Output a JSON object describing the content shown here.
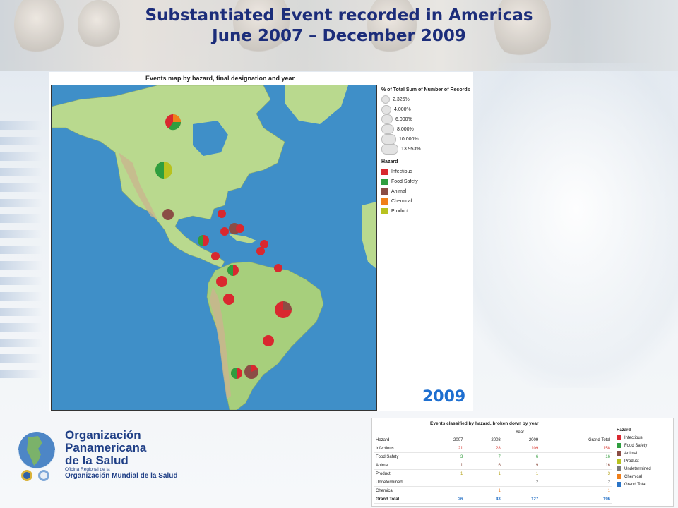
{
  "slide": {
    "title_line1": "Substantiated Event recorded in Americas",
    "title_line2": "June 2007 – December 2009",
    "year_label": "2009"
  },
  "map": {
    "title": "Events map  by hazard, final designation and year",
    "size_legend": {
      "title": "% of Total Sum of Number of Records",
      "items": [
        "2.326%",
        "4.000%",
        "6.000%",
        "8.000%",
        "10.000%",
        "13.953%"
      ]
    },
    "hazard_legend": {
      "title": "Hazard",
      "items": [
        {
          "label": "Infectious",
          "color": "#d9282f"
        },
        {
          "label": "Food Safety",
          "color": "#2f9e3f"
        },
        {
          "label": "Animal",
          "color": "#8b4d45"
        },
        {
          "label": "Chemical",
          "color": "#f07f1a"
        },
        {
          "label": "Product",
          "color": "#b8c21f"
        }
      ]
    },
    "colors": {
      "ocean": "#3f8fc8",
      "land": "#b9d98e",
      "land_south": "#a7cf7c",
      "mountain": "#c9b58e"
    }
  },
  "table": {
    "title": "Events classified by hazard, broken down by year",
    "year_header": "Year",
    "columns": [
      "Hazard",
      "2007",
      "2008",
      "2009",
      "Grand Total"
    ],
    "rows": [
      {
        "hazard": "Infectious",
        "y2007": "21",
        "y2008": "28",
        "y2009": "109",
        "total": "158",
        "cls": "red"
      },
      {
        "hazard": "Food Safety",
        "y2007": "3",
        "y2008": "7",
        "y2009": "6",
        "total": "16",
        "cls": "green"
      },
      {
        "hazard": "Animal",
        "y2007": "1",
        "y2008": "6",
        "y2009": "9",
        "total": "16",
        "cls": "brown"
      },
      {
        "hazard": "Product",
        "y2007": "1",
        "y2008": "1",
        "y2009": "1",
        "total": "3",
        "cls": "gold"
      },
      {
        "hazard": "Undetermined",
        "y2007": "",
        "y2008": "",
        "y2009": "2",
        "total": "2",
        "cls": "gray"
      },
      {
        "hazard": "Chemical",
        "y2007": "",
        "y2008": "1",
        "y2009": "",
        "total": "1",
        "cls": "orange"
      }
    ],
    "grand_total": {
      "hazard": "Grand Total",
      "y2007": "26",
      "y2008": "43",
      "y2009": "127",
      "total": "196"
    },
    "legend": {
      "title": "Hazard",
      "items": [
        {
          "label": "Infectious",
          "color": "#d9282f"
        },
        {
          "label": "Food Safety",
          "color": "#2f9e3f"
        },
        {
          "label": "Animal",
          "color": "#8b4d45"
        },
        {
          "label": "Product",
          "color": "#b8c21f"
        },
        {
          "label": "Undetermined",
          "color": "#7a7a7a"
        },
        {
          "label": "Chemical",
          "color": "#f07f1a"
        },
        {
          "label": "Grand Total",
          "color": "#2a74c7"
        }
      ]
    }
  },
  "logo": {
    "line1": "Organización",
    "line2": "Panamericana",
    "line3": "de la Salud",
    "line4": "Oficina Regional de la",
    "line5": "Organización Mundial de la Salud"
  }
}
